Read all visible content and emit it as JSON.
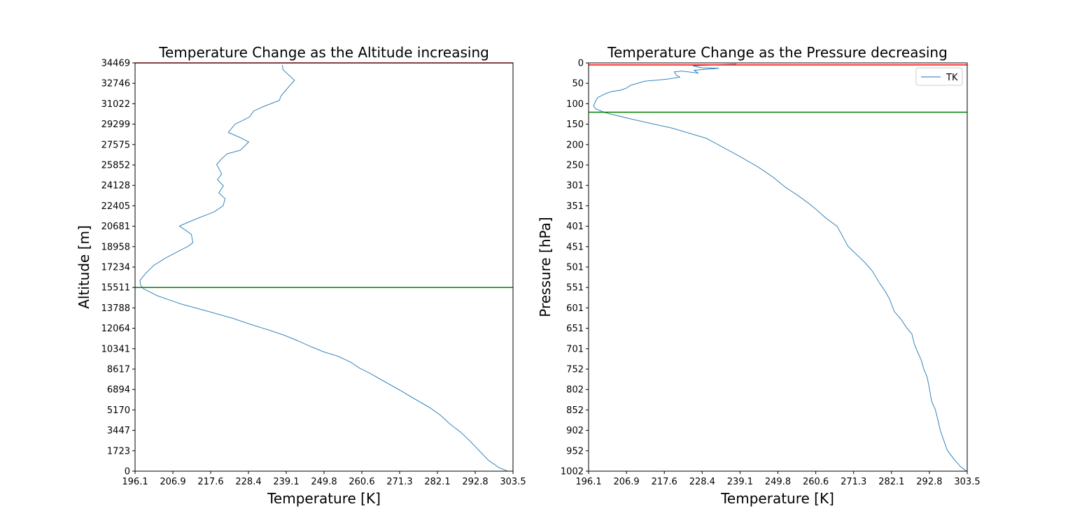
{
  "chart_data": [
    {
      "type": "line",
      "title": "Temperature Change as the Altitude increasing",
      "xlabel": "Temperature [K]",
      "ylabel": "Altitude [m]",
      "xlim": [
        196.1,
        303.5
      ],
      "ylim": [
        0,
        34469
      ],
      "xticks": [
        "196.1",
        "206.9",
        "217.6",
        "228.4",
        "239.1",
        "249.8",
        "260.6",
        "271.3",
        "282.1",
        "292.8",
        "303.5"
      ],
      "yticks": [
        "0",
        "1723",
        "3447",
        "5170",
        "6894",
        "8617",
        "10341",
        "12064",
        "13788",
        "15511",
        "17234",
        "18958",
        "20681",
        "22405",
        "24128",
        "25852",
        "27575",
        "29299",
        "31022",
        "32746",
        "34469"
      ],
      "grid": false,
      "series": [
        {
          "color": "#1f77b4",
          "x": [
            302.0,
            299.5,
            296.6,
            294.0,
            291.4,
            288.6,
            285.5,
            283.0,
            280.2,
            277.3,
            274.4,
            271.6,
            268.6,
            265.6,
            262.6,
            259.9,
            257.4,
            253.8,
            249.5,
            246.2,
            242.4,
            238.3,
            234.3,
            229.9,
            223.9,
            216.8,
            209.3,
            202.5,
            198.5,
            197.7,
            197.5,
            199.1,
            201.5,
            204.8,
            208.6,
            211.3,
            212.5,
            212.1,
            208.7,
            213.5,
            218.6,
            221.1,
            221.7,
            219.9,
            221.2,
            219.5,
            220.7,
            219.3,
            220.8,
            222.3,
            226.0,
            227.4,
            228.4,
            225.7,
            222.6,
            224.5,
            226.6,
            228.6,
            229.8,
            232.7,
            237.1,
            237.6,
            239.9,
            241.4,
            238.1,
            238.0
          ],
          "y": [
            0,
            300,
            900,
            1700,
            2500,
            3300,
            4000,
            4700,
            5300,
            5800,
            6300,
            6800,
            7300,
            7800,
            8300,
            8700,
            9200,
            9700,
            10100,
            10500,
            11000,
            11500,
            11900,
            12300,
            12900,
            13500,
            14100,
            14800,
            15400,
            15700,
            16100,
            16700,
            17400,
            18000,
            18600,
            19000,
            19300,
            20000,
            20700,
            21300,
            21900,
            22400,
            23000,
            23500,
            24100,
            24600,
            25100,
            25900,
            26400,
            26800,
            27100,
            27500,
            27800,
            28200,
            28600,
            29300,
            29600,
            29900,
            30400,
            30800,
            31300,
            31700,
            32500,
            33000,
            33900,
            34300
          ]
        }
      ],
      "reference_lines": [
        {
          "axis": "y",
          "value": 34469,
          "color": "#ff0000"
        },
        {
          "axis": "y",
          "value": 15511,
          "color": "#008000"
        }
      ]
    },
    {
      "type": "line",
      "title": "Temperature Change as the Pressure decreasing",
      "xlabel": "Temperature [K]",
      "ylabel": "Pressure [hPa]",
      "xlim": [
        196.1,
        303.5
      ],
      "ylim": [
        1002,
        0
      ],
      "y_inverted": true,
      "xticks": [
        "196.1",
        "206.9",
        "217.6",
        "228.4",
        "239.1",
        "249.8",
        "260.6",
        "271.3",
        "282.1",
        "292.8",
        "303.5"
      ],
      "yticks": [
        "0",
        "50",
        "100",
        "150",
        "200",
        "250",
        "301",
        "351",
        "401",
        "451",
        "501",
        "551",
        "601",
        "651",
        "701",
        "752",
        "802",
        "852",
        "902",
        "952",
        "1002"
      ],
      "grid": false,
      "legend": {
        "position": "upper right",
        "entries": [
          "TK"
        ]
      },
      "series": [
        {
          "name": "TK",
          "color": "#1f77b4",
          "x": [
            303.3,
            301.5,
            299.5,
            297.8,
            296.6,
            295.8,
            295.3,
            294.4,
            293.4,
            292.8,
            292.1,
            291.2,
            290.5,
            289.2,
            288.5,
            287.8,
            286.3,
            284.8,
            282.8,
            281.5,
            280.2,
            278.6,
            276.5,
            274.5,
            272.1,
            269.7,
            267.8,
            266.6,
            263.3,
            260.7,
            258.6,
            255.4,
            251.9,
            248.4,
            244.1,
            239.1,
            233.8,
            229.5,
            219.8,
            209.3,
            200.7,
            198.0,
            197.5,
            198.0,
            198.7,
            201.0,
            202.8,
            205.2,
            206.8,
            208.0,
            212.0,
            218.3,
            222.0,
            221.0,
            220.4,
            222.6,
            227.2,
            226.0,
            233.0,
            228.2,
            225.7,
            238.0
          ],
          "y": [
            1002,
            990,
            970,
            950,
            920,
            900,
            880,
            850,
            830,
            800,
            770,
            752,
            730,
            705,
            690,
            665,
            650,
            630,
            610,
            580,
            560,
            540,
            510,
            490,
            470,
            450,
            420,
            401,
            380,
            360,
            345,
            325,
            305,
            280,
            255,
            230,
            205,
            185,
            160,
            140,
            122,
            112,
            106,
            95,
            85,
            75,
            70,
            67,
            62,
            55,
            45,
            40,
            35,
            30,
            22,
            20,
            25,
            18,
            13,
            12,
            7,
            3
          ]
        }
      ],
      "reference_lines": [
        {
          "axis": "y",
          "value": 5,
          "color": "#ff0000"
        },
        {
          "axis": "y",
          "value": 121,
          "color": "#008000"
        }
      ]
    }
  ]
}
